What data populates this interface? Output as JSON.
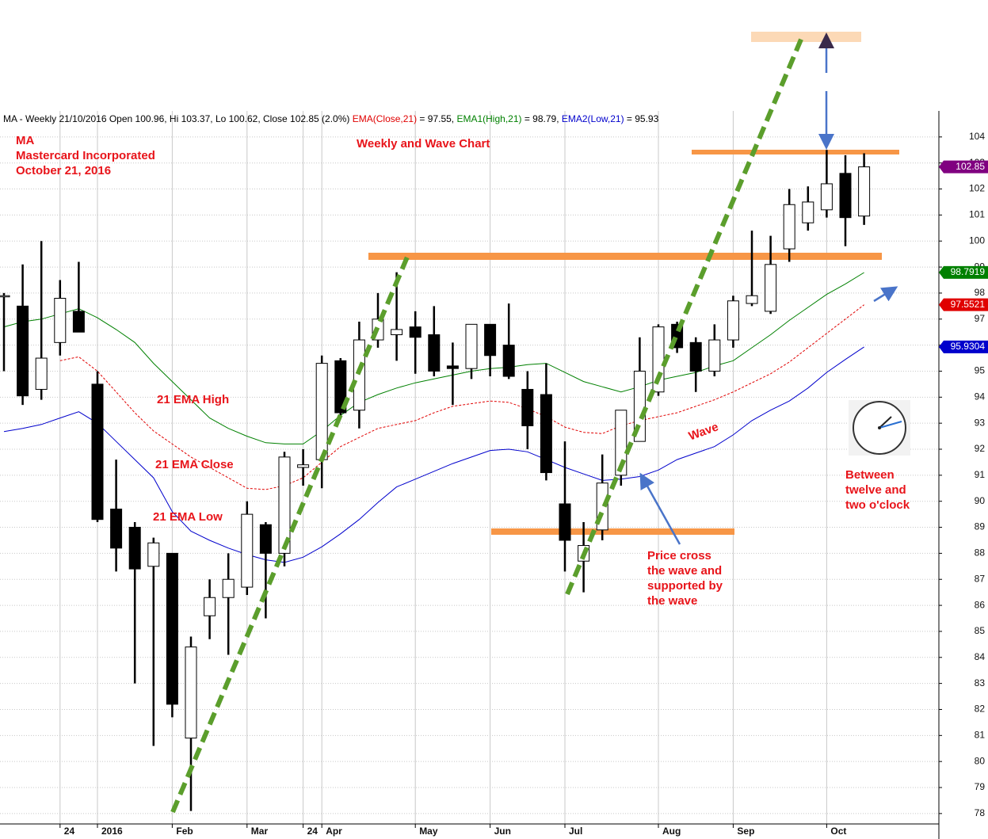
{
  "chart_data": {
    "type": "candlestick",
    "header": [
      {
        "text": "MA - Weekly 21/10/2016 Open 100.96, Hi 103.37, Lo 100.62, Close 102.85 (2.0%) ",
        "color": "#000000"
      },
      {
        "text": "EMA(Close,21)",
        "color": "#e00000"
      },
      {
        "text": " = 97.55, ",
        "color": "#000000"
      },
      {
        "text": "EMA1(High,21)",
        "color": "#008000"
      },
      {
        "text": " = 98.79, ",
        "color": "#000000"
      },
      {
        "text": "EMA2(Low,21)",
        "color": "#0000cc"
      },
      {
        "text": " = 95.93",
        "color": "#000000"
      }
    ],
    "title_lines": [
      "MA",
      "Mastercard Incorporated",
      "October 21, 2016"
    ],
    "subtitle": "Weekly and Wave Chart",
    "annotations": {
      "ema_high": "21 EMA High",
      "ema_close": "21 EMA Close",
      "ema_low": "21 EMA Low",
      "wave": "Wave",
      "price_cross": [
        "Price cross",
        "the wave and",
        "supported by",
        "the wave"
      ],
      "between": [
        "Between",
        "twelve and",
        "two o'clock"
      ]
    },
    "categories": [
      null,
      null,
      null,
      "24",
      null,
      "2016",
      null,
      null,
      null,
      "Feb",
      null,
      null,
      null,
      "Mar",
      null,
      null,
      "24",
      "Apr",
      null,
      null,
      null,
      null,
      "May",
      null,
      null,
      null,
      "Jun",
      null,
      null,
      null,
      "Jul",
      null,
      null,
      null,
      null,
      "Aug",
      null,
      null,
      null,
      "Sep",
      null,
      null,
      null,
      null,
      "Oct",
      null,
      null
    ],
    "open": [
      97.9,
      97.5,
      94.3,
      96.1,
      97.3,
      94.5,
      89.7,
      89.0,
      87.5,
      88.0,
      80.9,
      85.6,
      86.3,
      86.7,
      89.1,
      88.0,
      91.3,
      91.6,
      95.4,
      93.5,
      96.2,
      96.4,
      96.7,
      96.4,
      95.2,
      95.1,
      96.8,
      96.0,
      94.3,
      94.1,
      89.9,
      87.7,
      88.9,
      91.0,
      92.3,
      94.2,
      96.8,
      96.1,
      95.0,
      96.2,
      97.6,
      97.3,
      99.7,
      100.7,
      101.2,
      102.6,
      100.96
    ],
    "high": [
      98.0,
      99.1,
      100.0,
      98.5,
      99.2,
      95.0,
      91.6,
      89.2,
      88.6,
      88.0,
      84.8,
      87.0,
      88.0,
      90.0,
      89.2,
      91.9,
      92.0,
      95.6,
      95.5,
      96.9,
      98.0,
      98.8,
      97.3,
      97.5,
      96.1,
      96.8,
      96.8,
      97.6,
      95.0,
      95.3,
      92.3,
      89.2,
      91.8,
      93.5,
      96.3,
      96.8,
      96.9,
      96.3,
      96.8,
      97.9,
      100.4,
      100.2,
      102.0,
      102.1,
      103.5,
      103.3,
      103.37
    ],
    "low": [
      95.0,
      93.7,
      93.9,
      95.6,
      96.5,
      89.2,
      87.3,
      83.0,
      80.6,
      81.7,
      78.1,
      84.7,
      84.1,
      86.4,
      85.5,
      87.5,
      90.6,
      90.5,
      93.3,
      92.8,
      95.9,
      95.4,
      94.9,
      94.8,
      93.7,
      94.7,
      94.8,
      94.7,
      92.0,
      90.8,
      87.3,
      86.5,
      88.5,
      90.6,
      92.3,
      94.05,
      95.7,
      94.2,
      94.8,
      95.9,
      97.5,
      97.2,
      99.2,
      100.4,
      100.9,
      99.8,
      100.62
    ],
    "close": [
      97.9,
      94.05,
      95.5,
      97.8,
      96.5,
      89.3,
      88.2,
      87.4,
      88.4,
      82.2,
      84.4,
      86.3,
      87.0,
      89.5,
      88.0,
      91.7,
      91.4,
      95.3,
      93.4,
      96.2,
      97.0,
      96.6,
      96.3,
      95.0,
      95.1,
      96.8,
      95.6,
      94.8,
      92.9,
      91.1,
      88.5,
      88.3,
      90.7,
      93.5,
      95.0,
      96.7,
      95.9,
      95.0,
      96.2,
      97.7,
      97.9,
      99.1,
      101.4,
      101.5,
      102.2,
      100.9,
      102.85
    ],
    "lines": [
      {
        "color": "#008000",
        "dash": false,
        "values": [
          96.7,
          96.9,
          97.0,
          97.2,
          97.4,
          97.05,
          96.6,
          96.1,
          95.3,
          94.6,
          93.9,
          93.2,
          92.8,
          92.5,
          92.25,
          92.2,
          92.2,
          92.7,
          93.3,
          93.8,
          94.1,
          94.35,
          94.55,
          94.7,
          94.85,
          95.0,
          95.1,
          95.15,
          95.25,
          95.3,
          94.95,
          94.6,
          94.4,
          94.2,
          94.4,
          94.65,
          94.8,
          94.95,
          95.2,
          95.4,
          95.9,
          96.4,
          96.95,
          97.45,
          97.95,
          98.35,
          98.79
        ]
      },
      {
        "color": "#e00000",
        "dash": true,
        "values": [
          null,
          null,
          null,
          95.4,
          95.55,
          95.0,
          94.2,
          93.4,
          92.7,
          92.2,
          91.7,
          91.3,
          90.9,
          90.5,
          90.45,
          90.6,
          90.9,
          91.5,
          92.1,
          92.45,
          92.8,
          92.95,
          93.1,
          93.4,
          93.65,
          93.75,
          93.85,
          93.8,
          93.55,
          93.25,
          92.85,
          92.65,
          92.6,
          92.9,
          93.1,
          93.25,
          93.4,
          93.65,
          93.9,
          94.2,
          94.55,
          94.9,
          95.35,
          95.9,
          96.45,
          97.0,
          97.55
        ]
      },
      {
        "color": "#0000cc",
        "dash": false,
        "values": [
          92.68,
          92.8,
          92.95,
          93.2,
          93.44,
          93.0,
          92.3,
          91.6,
          90.9,
          89.6,
          88.85,
          88.5,
          88.2,
          87.95,
          87.75,
          87.65,
          87.85,
          88.25,
          88.75,
          89.3,
          89.95,
          90.55,
          90.85,
          91.15,
          91.45,
          91.7,
          91.95,
          92.0,
          91.9,
          91.6,
          91.3,
          91.05,
          90.8,
          90.85,
          90.95,
          91.2,
          91.6,
          91.85,
          92.1,
          92.55,
          93.1,
          93.5,
          93.85,
          94.35,
          94.95,
          95.45,
          95.93
        ]
      }
    ],
    "price_tags": [
      {
        "value": 102.85,
        "label": "102.85",
        "color": "#800080"
      },
      {
        "value": 98.7919,
        "label": "98.7919",
        "color": "#008000"
      },
      {
        "value": 97.5521,
        "label": "97.5521",
        "color": "#e00000"
      },
      {
        "value": 95.9304,
        "label": "95.9304",
        "color": "#0000cc"
      }
    ],
    "ylim": [
      77.6,
      105
    ],
    "yticks": [
      78,
      79,
      80,
      81,
      82,
      83,
      84,
      85,
      86,
      87,
      88,
      89,
      90,
      91,
      92,
      93,
      94,
      95,
      96,
      97,
      98,
      99,
      100,
      101,
      102,
      103,
      104
    ],
    "grid": true
  }
}
